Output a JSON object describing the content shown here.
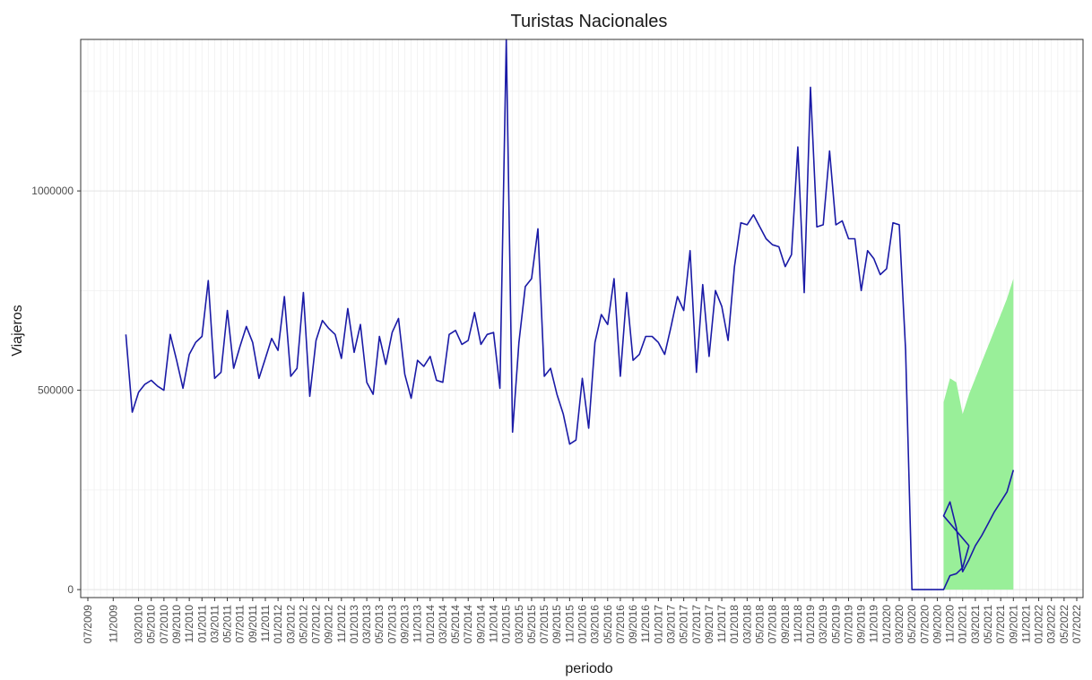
{
  "chart_data": {
    "type": "line",
    "title": "Turistas Nacionales",
    "xlabel": "periodo",
    "ylabel": "Viajeros",
    "ylim": [
      -20000,
      1380000
    ],
    "y_ticks": [
      0,
      500000,
      1000000
    ],
    "y_tick_labels": [
      "0",
      "500000",
      "1000000"
    ],
    "grid": true,
    "colors": {
      "line": "#1a1aa6",
      "band": "#99ef99",
      "panel_border": "#333333"
    },
    "x_tick_labels": [
      "07/2009",
      "11/2009",
      "03/2010",
      "05/2010",
      "07/2010",
      "09/2010",
      "11/2010",
      "01/2011",
      "03/2011",
      "05/2011",
      "07/2011",
      "09/2011",
      "11/2011",
      "01/2012",
      "03/2012",
      "05/2012",
      "07/2012",
      "09/2012",
      "11/2012",
      "01/2013",
      "03/2013",
      "05/2013",
      "07/2013",
      "09/2013",
      "11/2013",
      "01/2014",
      "03/2014",
      "05/2014",
      "07/2014",
      "09/2014",
      "11/2014",
      "01/2015",
      "03/2015",
      "05/2015",
      "07/2015",
      "09/2015",
      "11/2015",
      "01/2016",
      "03/2016",
      "05/2016",
      "07/2016",
      "09/2016",
      "11/2016",
      "01/2017",
      "03/2017",
      "05/2017",
      "07/2017",
      "09/2017",
      "11/2017",
      "01/2018",
      "03/2018",
      "05/2018",
      "07/2018",
      "09/2018",
      "11/2018",
      "01/2019",
      "03/2019",
      "05/2019",
      "07/2019",
      "09/2019",
      "11/2019",
      "01/2020",
      "03/2020",
      "05/2020",
      "07/2020",
      "09/2020",
      "11/2020",
      "01/2021",
      "03/2021",
      "05/2021",
      "07/2021",
      "09/2021",
      "11/2021",
      "01/2022",
      "03/2022",
      "05/2022",
      "07/2022"
    ],
    "series": [
      {
        "kind": "observed",
        "start": "01/2010",
        "values": [
          640000,
          445000,
          495000,
          515000,
          525000,
          510000,
          500000,
          640000,
          575000,
          505000,
          590000,
          620000,
          635000,
          775000,
          530000,
          545000,
          700000,
          555000,
          610000,
          660000,
          620000,
          530000,
          580000,
          630000,
          600000,
          735000,
          535000,
          555000,
          745000,
          485000,
          625000,
          675000,
          655000,
          640000,
          580000,
          705000,
          595000,
          665000,
          520000,
          490000,
          635000,
          565000,
          645000,
          680000,
          540000,
          480000,
          575000,
          560000,
          585000,
          525000,
          520000,
          640000,
          650000,
          615000,
          625000,
          695000,
          615000,
          640000,
          645000,
          505000,
          1380000,
          395000,
          620000,
          760000,
          780000,
          905000,
          535000,
          555000,
          490000,
          440000,
          365000,
          375000,
          530000,
          405000,
          620000,
          690000,
          665000,
          780000,
          535000,
          745000,
          575000,
          590000,
          635000,
          635000,
          620000,
          590000,
          660000,
          735000,
          700000,
          850000,
          545000,
          765000,
          585000,
          750000,
          710000,
          625000,
          810000,
          920000,
          915000,
          940000,
          910000,
          880000,
          865000,
          860000,
          810000,
          840000,
          1110000,
          745000,
          1260000,
          910000,
          915000,
          1100000,
          915000,
          925000,
          880000,
          880000,
          750000,
          850000,
          830000,
          790000,
          805000,
          920000,
          915000,
          600000,
          0,
          0,
          0,
          0,
          0,
          0,
          35000,
          40000,
          55000,
          110000
        ]
      },
      {
        "kind": "forecast",
        "start": "10/2020",
        "values": [
          185000,
          220000,
          155000,
          45000,
          75000,
          110000,
          135000,
          165000,
          195000,
          220000,
          245000,
          300000
        ],
        "lower": [
          0,
          0,
          0,
          0,
          0,
          0,
          0,
          0,
          0,
          0,
          0,
          0
        ],
        "upper": [
          470000,
          530000,
          520000,
          440000,
          490000,
          530000,
          570000,
          610000,
          650000,
          690000,
          730000,
          780000
        ]
      }
    ]
  }
}
